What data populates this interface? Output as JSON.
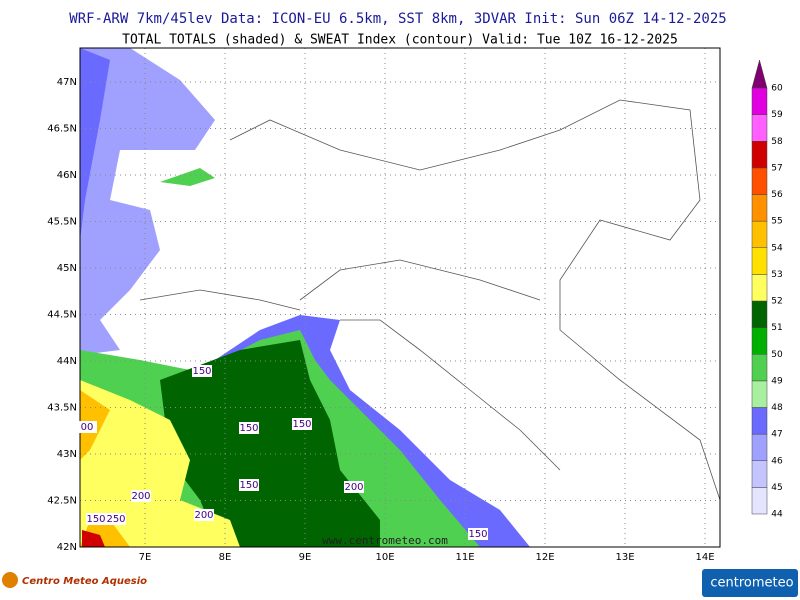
{
  "header": {
    "line1": "WRF-ARW 7km/45lev  Data: ICON-EU 6.5km, SST 8km, 3DVAR  Init: Sun 06Z 14-12-2025",
    "line2": "TOTAL TOTALS (shaded) & SWEAT Index (contour)  Valid: Tue 10Z 16-12-2025"
  },
  "map": {
    "lat_labels": [
      "47N",
      "46.5N",
      "46N",
      "45.5N",
      "45N",
      "44.5N",
      "44N",
      "43.5N",
      "43N",
      "42.5N",
      "42N"
    ],
    "lon_labels": [
      "7E",
      "8E",
      "9E",
      "10E",
      "11E",
      "12E",
      "13E",
      "14E"
    ],
    "contour_labels": [
      "150",
      "150",
      "150",
      "150",
      "150",
      "200",
      "200",
      "200",
      "00",
      "150",
      "250"
    ],
    "watermark": "www.centrometeo.com"
  },
  "colorbar": {
    "labels": [
      44,
      45,
      46,
      47,
      48,
      49,
      50,
      51,
      52,
      53,
      54,
      55,
      56,
      57,
      58,
      59,
      60
    ],
    "colors": [
      "#e4e4ff",
      "#c4c4ff",
      "#a0a0ff",
      "#6a6aff",
      "#a8f0a0",
      "#50d050",
      "#00b000",
      "#006400",
      "#ffff60",
      "#ffe000",
      "#ffc000",
      "#ff9000",
      "#ff5000",
      "#d00000",
      "#ff60ff",
      "#e000e0"
    ],
    "top_color": "#800070"
  },
  "footer": {
    "left_logo": "Centro Meteo Aquesio",
    "right_logo": "centrometeo"
  }
}
